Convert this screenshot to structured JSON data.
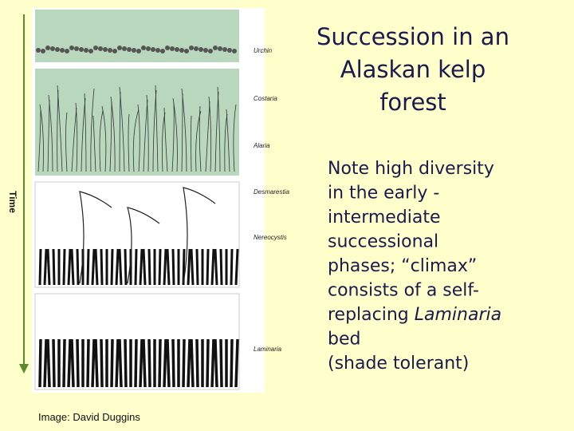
{
  "slide": {
    "title_lines": [
      "Succession in an",
      "Alaskan kelp",
      "forest"
    ],
    "body_lines": [
      [
        {
          "text": "Note high diversity"
        }
      ],
      [
        {
          "text": "in the early -"
        }
      ],
      [
        {
          "text": "intermediate"
        }
      ],
      [
        {
          "text": "successional"
        }
      ],
      [
        {
          "text": "phases; “climax”"
        }
      ],
      [
        {
          "text": "consists of a self-"
        }
      ],
      [
        {
          "text": "replacing "
        },
        {
          "text": "Laminaria",
          "italic": true
        }
      ],
      [
        {
          "text": "bed"
        }
      ],
      [
        {
          "text": "(shade tolerant)"
        }
      ]
    ],
    "figure": {
      "axis_label": "Time",
      "species": [
        "Urchin",
        "Costaria",
        "Alaria",
        "Desmarestia",
        "Nereocystis",
        "Laminaria"
      ],
      "credit": "Image: David Duggins"
    }
  }
}
